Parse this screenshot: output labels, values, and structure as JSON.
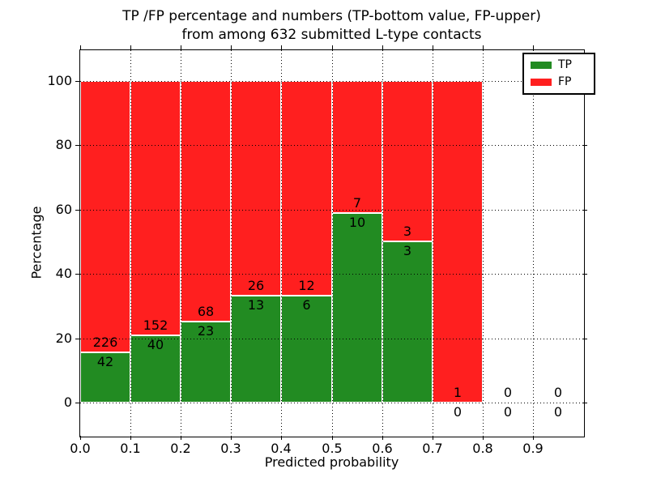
{
  "chart_data": {
    "type": "bar",
    "stacked": true,
    "title_line1": "TP /FP percentage and numbers (TP-bottom value, FP-upper)",
    "title_line2": "from among 632 submitted L-type contacts",
    "xlabel": "Predicted probability",
    "ylabel": "Percentage",
    "x_tick_labels": [
      "0.0",
      "0.1",
      "0.2",
      "0.3",
      "0.4",
      "0.5",
      "0.6",
      "0.7",
      "0.8",
      "0.9"
    ],
    "y_tick_labels": [
      "0",
      "20",
      "40",
      "60",
      "80",
      "100"
    ],
    "y_tick_values": [
      0,
      20,
      40,
      60,
      80,
      100
    ],
    "xlim": [
      0.0,
      1.0
    ],
    "ylim": [
      -10.2,
      109.5
    ],
    "bin_width": 0.1,
    "grid": true,
    "total_contacts": 632,
    "bins": [
      {
        "x_start": 0.0,
        "x_end": 0.1,
        "tp": 42,
        "fp": 226
      },
      {
        "x_start": 0.1,
        "x_end": 0.2,
        "tp": 40,
        "fp": 152
      },
      {
        "x_start": 0.2,
        "x_end": 0.3,
        "tp": 23,
        "fp": 68
      },
      {
        "x_start": 0.3,
        "x_end": 0.4,
        "tp": 13,
        "fp": 26
      },
      {
        "x_start": 0.4,
        "x_end": 0.5,
        "tp": 6,
        "fp": 12
      },
      {
        "x_start": 0.5,
        "x_end": 0.6,
        "tp": 10,
        "fp": 7
      },
      {
        "x_start": 0.6,
        "x_end": 0.7,
        "tp": 3,
        "fp": 3
      },
      {
        "x_start": 0.7,
        "x_end": 0.8,
        "tp": 0,
        "fp": 1
      },
      {
        "x_start": 0.8,
        "x_end": 0.9,
        "tp": 0,
        "fp": 0
      },
      {
        "x_start": 0.9,
        "x_end": 1.0,
        "tp": 0,
        "fp": 0
      }
    ],
    "legend": {
      "position": "upper-right",
      "entries": [
        {
          "label": "TP",
          "color": "#228b22"
        },
        {
          "label": "FP",
          "color": "#ff1f1f"
        }
      ]
    },
    "colors": {
      "tp": "#228b22",
      "fp": "#ff1f1f",
      "grid": "#000000",
      "bar_edge": "#ffffff",
      "text": "#000000",
      "background": "#ffffff"
    }
  }
}
